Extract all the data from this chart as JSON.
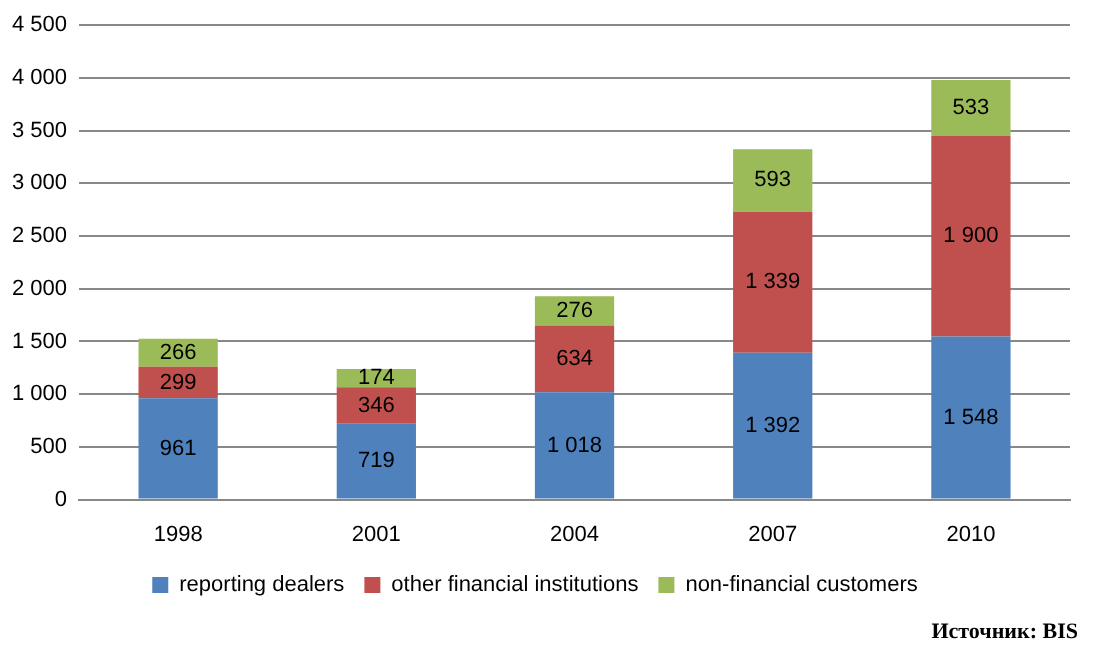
{
  "chart_data": {
    "type": "bar",
    "stacked": true,
    "categories": [
      "1998",
      "2001",
      "2004",
      "2007",
      "2010"
    ],
    "series": [
      {
        "name": "reporting dealers",
        "color": "#4f81bd",
        "values": [
          961,
          719,
          1018,
          1392,
          1548
        ],
        "value_labels": [
          "961",
          "719",
          "1 018",
          "1 392",
          "1 548"
        ]
      },
      {
        "name": "other financial institutions",
        "color": "#c0504d",
        "values": [
          299,
          346,
          634,
          1339,
          1900
        ],
        "value_labels": [
          "299",
          "346",
          "634",
          "1 339",
          "1 900"
        ]
      },
      {
        "name": "non-financial customers",
        "color": "#9bbb59",
        "values": [
          266,
          174,
          276,
          593,
          533
        ],
        "value_labels": [
          "266",
          "174",
          "276",
          "593",
          "533"
        ]
      }
    ],
    "ylim": [
      0,
      4500
    ],
    "yticks": [
      0,
      {
        "value": 500,
        "label": "500"
      },
      {
        "value": 1000,
        "label": "1 000"
      },
      {
        "value": 1500,
        "label": "1 500"
      },
      {
        "value": 2000,
        "label": "2 000"
      },
      {
        "value": 2500,
        "label": "2 500"
      },
      {
        "value": 3000,
        "label": "3 000"
      },
      {
        "value": 3500,
        "label": "3 500"
      },
      {
        "value": 4000,
        "label": "4 000"
      },
      {
        "value": 4500,
        "label": "4 500"
      }
    ],
    "grid": "y",
    "legend": "bottom",
    "annotations": [
      "Источник: BIS"
    ]
  }
}
